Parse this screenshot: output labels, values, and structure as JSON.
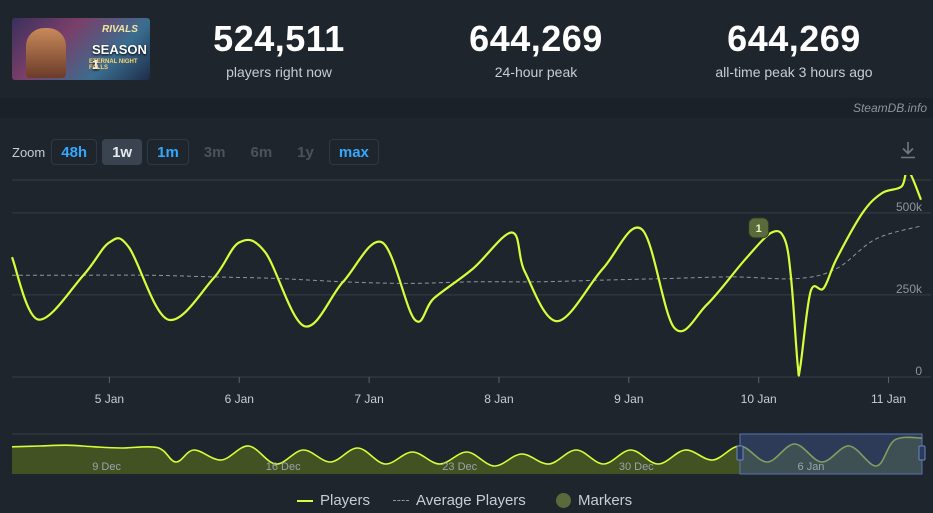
{
  "banner": {
    "logo": "RIVALS",
    "season": "SEASON 1",
    "subtitle": "ETERNAL NIGHT FALLS"
  },
  "stats": [
    {
      "value": "524,511",
      "label": "players right now"
    },
    {
      "value": "644,269",
      "label": "24-hour peak"
    },
    {
      "value": "644,269",
      "label": "all-time peak 3 hours ago"
    }
  ],
  "credit": "SteamDB.info",
  "zoom": {
    "label": "Zoom",
    "buttons": [
      {
        "label": "48h",
        "state": "active"
      },
      {
        "label": "1w",
        "state": "selected"
      },
      {
        "label": "1m",
        "state": "active"
      },
      {
        "label": "3m",
        "state": "disabled"
      },
      {
        "label": "6m",
        "state": "disabled"
      },
      {
        "label": "1y",
        "state": "disabled"
      },
      {
        "label": "max",
        "state": "active"
      }
    ]
  },
  "legend": {
    "players": "Players",
    "average": "Average Players",
    "markers": "Markers"
  },
  "colors": {
    "players": "#d4ff3a",
    "average": "#8f969c",
    "marker": "#5b6a3a",
    "navigator_fill": "#4a5a22",
    "navigator_window": "#3a4f7e"
  },
  "chart_data": [
    {
      "type": "line",
      "x_tick_labels": [
        "5 Jan",
        "6 Jan",
        "7 Jan",
        "8 Jan",
        "9 Jan",
        "10 Jan",
        "11 Jan"
      ],
      "y_tick_labels": [
        "0",
        "250k",
        "500k"
      ],
      "ylim": [
        0,
        600000
      ],
      "grid": true,
      "legend_position": "bottom-center",
      "series": [
        {
          "name": "Players",
          "x": [
            4.25,
            4.45,
            4.8,
            5.0,
            5.15,
            5.45,
            5.8,
            6.0,
            6.2,
            6.5,
            6.8,
            7.1,
            7.35,
            7.5,
            7.8,
            8.1,
            8.2,
            8.45,
            8.8,
            9.1,
            9.35,
            9.6,
            9.9,
            10.1,
            10.2,
            10.25,
            10.3,
            10.32,
            10.4,
            10.5,
            10.6,
            10.8,
            10.95,
            11.1,
            11.15,
            11.25
          ],
          "y": [
            365000,
            175000,
            310000,
            410000,
            395000,
            175000,
            300000,
            410000,
            380000,
            155000,
            290000,
            410000,
            175000,
            240000,
            330000,
            440000,
            320000,
            170000,
            330000,
            450000,
            150000,
            220000,
            360000,
            440000,
            420000,
            300000,
            40000,
            30000,
            260000,
            270000,
            360000,
            500000,
            560000,
            580000,
            630000,
            540000
          ]
        },
        {
          "name": "Average Players",
          "x": [
            4.25,
            4.8,
            5.3,
            5.8,
            6.3,
            6.8,
            7.3,
            7.8,
            8.3,
            8.8,
            9.3,
            9.8,
            10.3,
            10.6,
            10.9,
            11.25
          ],
          "y": [
            310000,
            310000,
            310000,
            305000,
            300000,
            290000,
            285000,
            290000,
            290000,
            295000,
            300000,
            305000,
            300000,
            330000,
            420000,
            460000
          ]
        }
      ],
      "markers": [
        {
          "x": 10.0,
          "label": "1"
        }
      ]
    },
    {
      "type": "area",
      "x_tick_labels": [
        "9 Dec",
        "16 Dec",
        "23 Dec",
        "30 Dec",
        "6 Jan"
      ],
      "series": [
        {
          "name": "Players",
          "x": [
            0,
            0.03,
            0.06,
            0.09,
            0.12,
            0.16,
            0.18,
            0.2,
            0.23,
            0.26,
            0.29,
            0.32,
            0.35,
            0.38,
            0.41,
            0.44,
            0.47,
            0.5,
            0.53,
            0.56,
            0.59,
            0.62,
            0.65,
            0.68,
            0.71,
            0.74,
            0.77,
            0.8,
            0.83,
            0.86,
            0.89,
            0.92,
            0.95,
            0.97,
            1.0
          ],
          "y": [
            0.68,
            0.7,
            0.72,
            0.68,
            0.65,
            0.66,
            0.3,
            0.6,
            0.35,
            0.7,
            0.25,
            0.6,
            0.3,
            0.65,
            0.25,
            0.55,
            0.25,
            0.55,
            0.2,
            0.5,
            0.25,
            0.6,
            0.25,
            0.6,
            0.25,
            0.6,
            0.35,
            0.7,
            0.3,
            0.75,
            0.3,
            0.7,
            0.2,
            0.85,
            0.9
          ]
        }
      ],
      "selected_range": [
        0.8,
        1.0
      ]
    }
  ]
}
